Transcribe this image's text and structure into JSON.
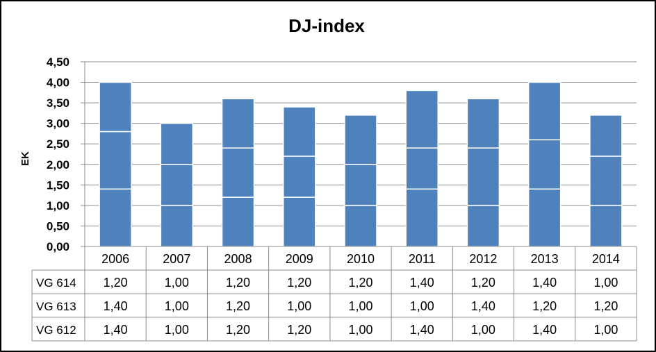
{
  "chart_data": {
    "type": "bar",
    "stacked": true,
    "title": "DJ-index",
    "ylabel": "EK",
    "xlabel": "",
    "ylim": [
      0,
      4.5
    ],
    "yticks": [
      "0,00",
      "0,50",
      "1,00",
      "1,50",
      "2,00",
      "2,50",
      "3,00",
      "3,50",
      "4,00",
      "4,50"
    ],
    "grid": true,
    "categories": [
      "2006",
      "2007",
      "2008",
      "2009",
      "2010",
      "2011",
      "2012",
      "2013",
      "2014"
    ],
    "series": [
      {
        "name": "VG 612",
        "values": [
          1.4,
          1.0,
          1.2,
          1.2,
          1.0,
          1.4,
          1.0,
          1.4,
          1.0
        ],
        "labels": [
          "1,40",
          "1,00",
          "1,20",
          "1,20",
          "1,00",
          "1,40",
          "1,00",
          "1,40",
          "1,00"
        ]
      },
      {
        "name": "VG 613",
        "values": [
          1.4,
          1.0,
          1.2,
          1.0,
          1.0,
          1.0,
          1.4,
          1.2,
          1.2
        ],
        "labels": [
          "1,40",
          "1,00",
          "1,20",
          "1,00",
          "1,00",
          "1,00",
          "1,40",
          "1,20",
          "1,20"
        ]
      },
      {
        "name": "VG 614",
        "values": [
          1.2,
          1.0,
          1.2,
          1.2,
          1.2,
          1.4,
          1.2,
          1.4,
          1.0
        ],
        "labels": [
          "1,20",
          "1,00",
          "1,20",
          "1,20",
          "1,20",
          "1,40",
          "1,20",
          "1,40",
          "1,00"
        ]
      }
    ],
    "table_row_order": [
      "VG 614",
      "VG 613",
      "VG 612"
    ],
    "bar_color": "#4f81bd",
    "segment_border_color": "#ffffff"
  }
}
